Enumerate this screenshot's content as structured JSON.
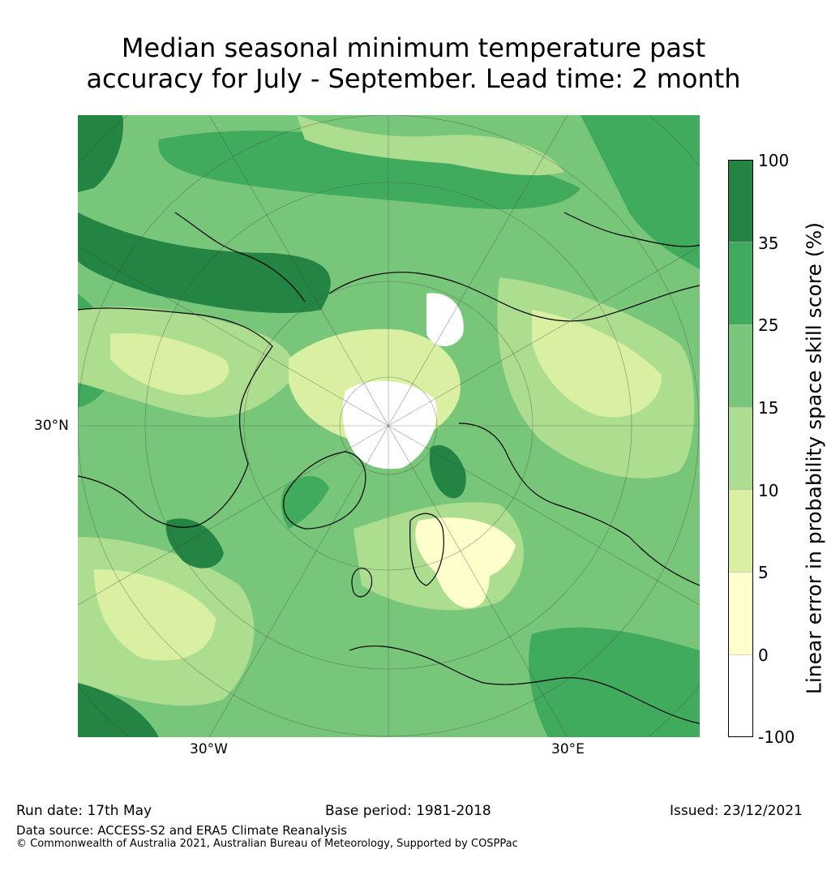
{
  "title": {
    "line1": "Median seasonal minimum temperature past",
    "line2": "accuracy for July - September. Lead time: 2 month"
  },
  "map": {
    "projection": "north polar stereographic",
    "lat_label": "30°N",
    "lon_labels": [
      "30°W",
      "30°E"
    ]
  },
  "colorbar": {
    "title": "Linear error in probability space skill score (%)",
    "ticks": [
      "100",
      "35",
      "25",
      "15",
      "10",
      "5",
      "0",
      "-100"
    ],
    "bins": [
      {
        "range": "35–100",
        "color": "#238443"
      },
      {
        "range": "25–35",
        "color": "#41ab5d"
      },
      {
        "range": "15–25",
        "color": "#78c679"
      },
      {
        "range": "10–15",
        "color": "#addd8e"
      },
      {
        "range": "5–10",
        "color": "#d9f0a3"
      },
      {
        "range": "0–5",
        "color": "#ffffcc"
      },
      {
        "range": "-100–0",
        "color": "#ffffff"
      }
    ]
  },
  "footer": {
    "run_date": "Run date: 17th May",
    "base_period": "Base period: 1981-2018",
    "issued": "Issued: 23/12/2021",
    "data_source": "Data source: ACCESS-S2 and ERA5 Climate Reanalysis",
    "copyright": "© Commonwealth of Australia 2021, Australian Bureau of Meteorology, Supported by COSPPac"
  }
}
